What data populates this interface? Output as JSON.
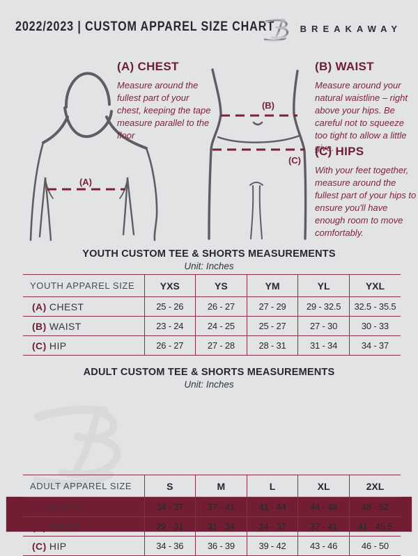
{
  "page": {
    "background": "#e2e3e5",
    "accent_maroon": "#731d33",
    "line_maroon": "#84304a",
    "heading_maroon": "#6e1d38"
  },
  "header": {
    "title": "2022/2023  |  CUSTOM APPAREL SIZE CHART",
    "brand": "BREAKAWAY"
  },
  "guide": {
    "sections": [
      {
        "heading": "(A) CHEST",
        "body": "Measure around the fullest part of your chest, keeping the tape measure parallel to the floor"
      },
      {
        "heading": "(B) WAIST",
        "body": "Measure around your natural waistline – right above your hips. Be careful not to squeeze too tight to allow a little give."
      },
      {
        "heading": "(C) HIPS",
        "body": "With your feet together, measure around the fullest part of your hips to ensure you'll have enough room to move comfortably."
      }
    ],
    "markers": {
      "chest": "(A)",
      "waist": "(B)",
      "hips": "(C)"
    }
  },
  "tables": [
    {
      "title": "YOUTH CUSTOM TEE & SHORTS MEASUREMENTS",
      "unit": "Unit: Inches",
      "corner": "YOUTH APPAREL SIZE",
      "sizes": [
        "YXS",
        "YS",
        "YM",
        "YL",
        "YXL"
      ],
      "rows": [
        {
          "prefix": "(A)",
          "label": "CHEST",
          "values": [
            "25 - 26",
            "26 - 27",
            "27 - 29",
            "29 - 32.5",
            "32.5 - 35.5"
          ]
        },
        {
          "prefix": "(B)",
          "label": "WAIST",
          "values": [
            "23 - 24",
            "24 - 25",
            "25 - 27",
            "27 - 30",
            "30 - 33"
          ]
        },
        {
          "prefix": "(C)",
          "label": "HIP",
          "values": [
            "26 - 27",
            "27 - 28",
            "28 - 31",
            "31 - 34",
            "34 - 37"
          ]
        }
      ]
    },
    {
      "title": "ADULT CUSTOM TEE & SHORTS MEASUREMENTS",
      "unit": "Unit: Inches",
      "corner": "ADULT APPAREL SIZE",
      "sizes": [
        "S",
        "M",
        "L",
        "XL",
        "2XL"
      ],
      "rows": [
        {
          "prefix": "(A)",
          "label": "CHEST",
          "values": [
            "34 - 37",
            "37 - 41",
            "41 - 44",
            "44 - 48",
            "48 - 52"
          ]
        },
        {
          "prefix": "(B)",
          "label": "WAIST",
          "values": [
            "29 - 31",
            "31 - 34",
            "34 - 37",
            "37 - 41",
            "41 - 45.5"
          ]
        },
        {
          "prefix": "(C)",
          "label": "HIP",
          "values": [
            "34 - 36",
            "36 - 39",
            "39 - 42",
            "43 - 46",
            "46 - 50"
          ]
        }
      ]
    }
  ]
}
